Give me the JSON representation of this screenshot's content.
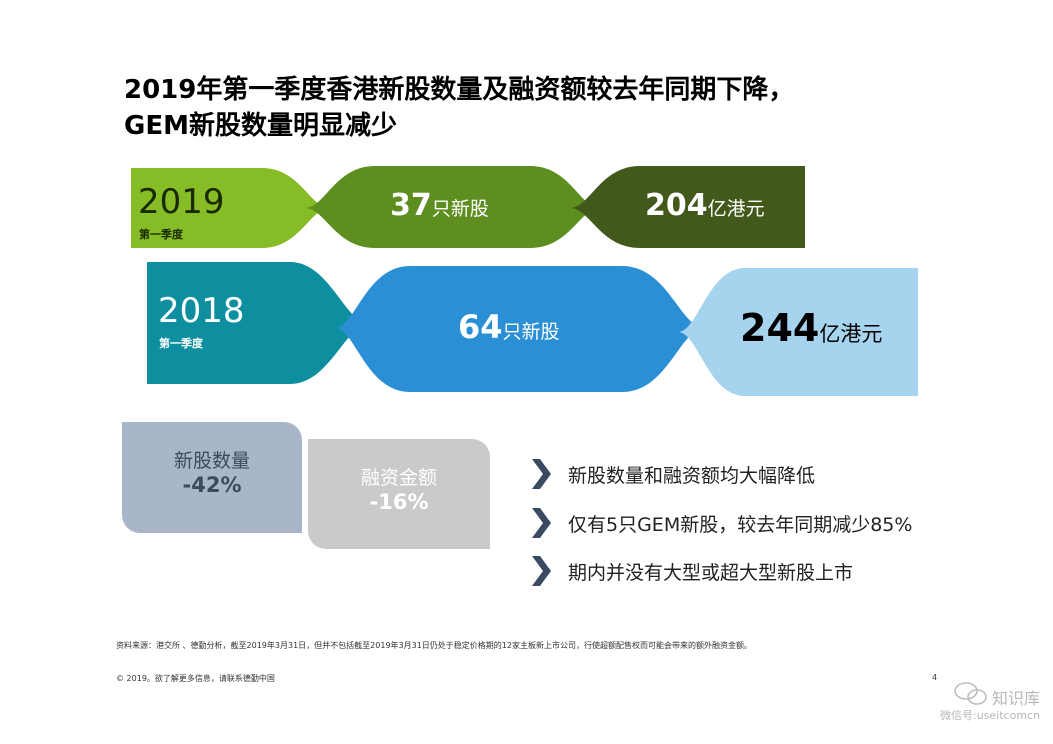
{
  "title": {
    "line1": "2019年第一季度香港新股数量及融资额较去年同期下降，",
    "line2": "GEM新股数量明显减少"
  },
  "q2019": {
    "year": "2019",
    "period": "第一季度",
    "ipo_count": "37",
    "ipo_unit": "只新股",
    "funds": "204",
    "funds_unit": "亿港元"
  },
  "q2018": {
    "year": "2018",
    "period": "第一季度",
    "ipo_count": "64",
    "ipo_unit": "只新股",
    "funds": "244",
    "funds_unit": "亿港元"
  },
  "changes": {
    "count_label": "新股数量",
    "count_pct": "-42%",
    "funds_label": "融资金额",
    "funds_pct": "-16%"
  },
  "bullets": [
    "新股数量和融资额均大幅降低",
    "仅有5只GEM新股，较去年同期减少85%",
    "期内并没有大型或超大型新股上市"
  ],
  "footer": {
    "source": "资料来源：港交所 、德勤分析，截至2019年3月31日，但并不包括截至2019年3月31日仍处于稳定价格期的12家主板新上市公司，行使超额配售权而可能会带来的额外融资金额。",
    "copyright": "© 2019。欲了解更多信息，请联系德勤中国",
    "page": "4"
  },
  "watermark": {
    "name": "知识库",
    "wechat": "微信号:useitcomcn"
  },
  "colors": {
    "green_light": "#86bc25",
    "green_mid": "#5e8e1f",
    "green_dark": "#43591c",
    "teal": "#0d8fa0",
    "blue": "#2b8fd6",
    "blue_light": "#a6d4ee",
    "gray_blue": "#a9b5c8",
    "gray": "#c9cacc",
    "chevron": "#3a4a63"
  }
}
